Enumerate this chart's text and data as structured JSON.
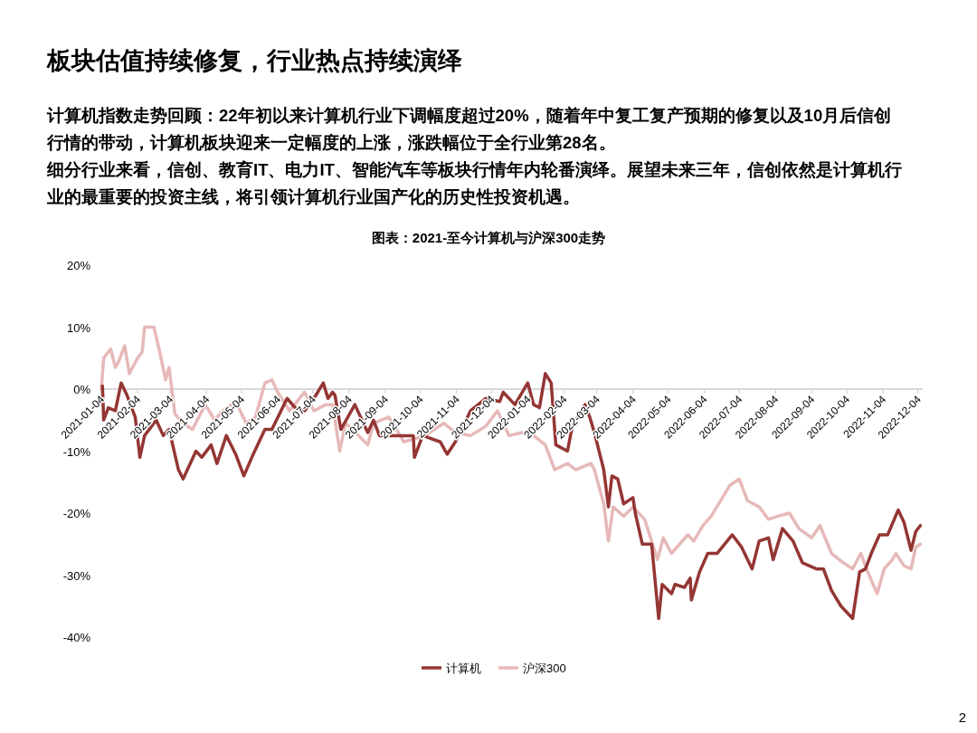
{
  "chart_data": {
    "type": "line",
    "title": "板块估值持续修复，行业热点持续演绎",
    "subtitle": "计算机指数走势回顾：22年初以来计算机行业下调幅度超过20%，随着年中复工复产预期的修复以及10月后信创行情的带动，计算机板块迎来一定幅度的上涨，涨跌幅位于全行业第28名。",
    "annotations": [
      "细分行业来看，信创、教育IT、电力IT、智能汽车等板块行情年内轮番演绎。展望未来三年，信创依然是计算机行业的最重要的投资主线，将引领计算机行业国产化的历史性投资机遇。",
      "图表：2021-至今计算机与沪深300走势",
      "2"
    ],
    "xlim": [
      "2021-01-04",
      "2022-12-08"
    ],
    "xticks": [
      "2021-01-04",
      "2021-02-04",
      "2021-03-04",
      "2021-04-04",
      "2021-05-04",
      "2021-06-04",
      "2021-07-04",
      "2021-08-04",
      "2021-09-04",
      "2021-10-04",
      "2021-11-04",
      "2021-12-04",
      "2022-01-04",
      "2022-02-04",
      "2022-03-04",
      "2022-04-04",
      "2022-05-04",
      "2022-06-04",
      "2022-07-04",
      "2022-08-04",
      "2022-09-04",
      "2022-10-04",
      "2022-11-04",
      "2022-12-04"
    ],
    "ylim": [
      -40,
      20
    ],
    "yticks": [
      {
        "value": -40,
        "label": "-40%"
      },
      {
        "value": -30,
        "label": "-30%"
      },
      {
        "value": -20,
        "label": "-20%"
      },
      {
        "value": -10,
        "label": "-10%"
      },
      {
        "value": 0,
        "label": "0%"
      },
      {
        "value": 10,
        "label": "10%"
      },
      {
        "value": 20,
        "label": "20%"
      }
    ],
    "grid": false,
    "legend": "bottom",
    "marker": "none",
    "line_style": "solid",
    "series": [
      {
        "name": "计算机",
        "color": "#943634",
        "x": [
          "2021-01-05",
          "2021-01-06",
          "2021-01-10",
          "2021-01-16",
          "2021-01-21",
          "2021-01-26",
          "2021-02-02",
          "2021-02-06",
          "2021-02-10",
          "2021-02-20",
          "2021-02-26",
          "2021-03-03",
          "2021-03-11",
          "2021-03-15",
          "2021-03-26",
          "2021-03-31",
          "2021-04-08",
          "2021-04-13",
          "2021-04-21",
          "2021-04-29",
          "2021-05-06",
          "2021-05-14",
          "2021-05-24",
          "2021-05-30",
          "2021-06-12",
          "2021-06-19",
          "2021-06-27",
          "2021-07-05",
          "2021-07-13",
          "2021-07-17",
          "2021-07-21",
          "2021-07-23",
          "2021-07-28",
          "2021-08-09",
          "2021-08-20",
          "2021-08-25",
          "2021-08-30",
          "2021-09-13",
          "2021-09-28",
          "2021-09-29",
          "2021-10-06",
          "2021-10-21",
          "2021-10-27",
          "2021-11-03",
          "2021-11-16",
          "2021-11-29",
          "2021-12-11",
          "2021-12-14",
          "2021-12-24",
          "2022-01-04",
          "2022-01-09",
          "2022-01-14",
          "2022-01-19",
          "2022-01-24",
          "2022-01-28",
          "2022-02-07",
          "2022-02-11",
          "2022-02-22",
          "2022-02-26",
          "2022-03-02",
          "2022-03-04",
          "2022-03-10",
          "2022-03-14",
          "2022-03-17",
          "2022-03-22",
          "2022-03-27",
          "2022-04-04",
          "2022-04-06",
          "2022-04-12",
          "2022-04-20",
          "2022-04-26",
          "2022-04-29",
          "2022-05-07",
          "2022-05-10",
          "2022-05-18",
          "2022-05-23",
          "2022-05-24",
          "2022-05-31",
          "2022-06-07",
          "2022-06-15",
          "2022-06-28",
          "2022-07-06",
          "2022-07-15",
          "2022-07-21",
          "2022-07-29",
          "2022-08-02",
          "2022-08-10",
          "2022-08-19",
          "2022-08-27",
          "2022-09-08",
          "2022-09-14",
          "2022-09-21",
          "2022-09-29",
          "2022-10-09",
          "2022-10-15",
          "2022-10-20",
          "2022-10-25",
          "2022-11-01",
          "2022-11-08",
          "2022-11-17",
          "2022-11-22",
          "2022-11-28",
          "2022-12-02",
          "2022-12-06"
        ],
        "values": [
          0.5,
          -5,
          -3,
          -3.5,
          1,
          -1,
          -4.5,
          -11,
          -7.5,
          -5,
          -7.5,
          -6.5,
          -13,
          -14.5,
          -10,
          -11,
          -9,
          -12,
          -7.5,
          -10.5,
          -14,
          -10.5,
          -6.5,
          -6.5,
          -1.5,
          -3,
          -3.5,
          -1.5,
          1,
          -1.5,
          -0.5,
          -1,
          -6.5,
          -2.5,
          -7,
          -5,
          -7.5,
          -7.5,
          -7.5,
          -11,
          -7.5,
          -8.5,
          -10.5,
          -8.5,
          -3.5,
          -1.5,
          -2,
          -0.5,
          -2.5,
          1,
          -2.5,
          -3,
          2.5,
          1,
          -9,
          -10,
          -6,
          -2.5,
          -4.5,
          -7,
          -8.5,
          -13,
          -19,
          -14,
          -14.5,
          -18.5,
          -17.5,
          -20,
          -25,
          -25,
          -37,
          -31.5,
          -33,
          -31.5,
          -32,
          -30.5,
          -34,
          -29.5,
          -26.5,
          -26.5,
          -23.5,
          -25.5,
          -29,
          -24.5,
          -24,
          -27.5,
          -22.5,
          -24.5,
          -28,
          -29,
          -29,
          -32.5,
          -35,
          -37,
          -29.5,
          -29,
          -26.5,
          -23.5,
          -23.5,
          -19.5,
          -21.5,
          -26,
          -23,
          -22
        ]
      },
      {
        "name": "沪深300",
        "color": "#e6b9b8",
        "x": [
          "2021-01-04",
          "2021-01-06",
          "2021-01-12",
          "2021-01-16",
          "2021-01-19",
          "2021-01-24",
          "2021-01-28",
          "2021-02-04",
          "2021-02-08",
          "2021-02-10",
          "2021-02-18",
          "2021-02-23",
          "2021-02-28",
          "2021-03-03",
          "2021-03-08",
          "2021-03-15",
          "2021-03-23",
          "2021-04-03",
          "2021-04-11",
          "2021-04-18",
          "2021-04-29",
          "2021-05-08",
          "2021-05-16",
          "2021-05-24",
          "2021-05-30",
          "2021-06-04",
          "2021-06-14",
          "2021-06-27",
          "2021-07-05",
          "2021-07-15",
          "2021-07-21",
          "2021-07-27",
          "2021-08-01",
          "2021-08-07",
          "2021-08-20",
          "2021-08-25",
          "2021-09-07",
          "2021-09-20",
          "2021-10-08",
          "2021-10-24",
          "2021-11-03",
          "2021-11-16",
          "2021-11-29",
          "2021-12-09",
          "2021-12-19",
          "2021-12-30",
          "2022-01-09",
          "2022-01-19",
          "2022-01-27",
          "2022-02-07",
          "2022-02-14",
          "2022-02-27",
          "2022-03-02",
          "2022-03-10",
          "2022-03-14",
          "2022-03-18",
          "2022-03-27",
          "2022-04-04",
          "2022-04-14",
          "2022-04-25",
          "2022-04-30",
          "2022-05-07",
          "2022-05-21",
          "2022-05-26",
          "2022-06-03",
          "2022-06-10",
          "2022-06-18",
          "2022-06-26",
          "2022-07-04",
          "2022-07-11",
          "2022-07-21",
          "2022-07-29",
          "2022-08-06",
          "2022-08-16",
          "2022-08-24",
          "2022-09-04",
          "2022-09-11",
          "2022-09-21",
          "2022-10-01",
          "2022-10-09",
          "2022-10-16",
          "2022-10-22",
          "2022-10-30",
          "2022-11-05",
          "2022-11-12",
          "2022-11-15",
          "2022-11-22",
          "2022-11-28",
          "2022-12-02",
          "2022-12-06"
        ],
        "values": [
          0,
          5,
          6.5,
          3.5,
          4.5,
          7,
          2.5,
          5,
          6,
          10,
          10,
          6,
          1.5,
          3.5,
          -4,
          -5.5,
          -6.5,
          -2.5,
          -5,
          -3.5,
          -2,
          -5.5,
          -4.5,
          1,
          1.5,
          -0.5,
          -3.5,
          -0.5,
          -3.5,
          -2.5,
          -2.5,
          -10,
          -5.5,
          -6.5,
          -9,
          -5.5,
          -4.5,
          -8.5,
          -7.5,
          -5.5,
          -7,
          -7.5,
          -6,
          -3.5,
          -7.5,
          -7,
          -7.5,
          -9,
          -13,
          -12,
          -13,
          -12,
          -13,
          -18.5,
          -24.5,
          -19,
          -20.5,
          -19,
          -21,
          -27.5,
          -24,
          -26.5,
          -23.5,
          -24.5,
          -22,
          -20.5,
          -18,
          -15.5,
          -14.5,
          -18,
          -19,
          -21,
          -20.5,
          -20,
          -22.5,
          -24,
          -22,
          -26.5,
          -28,
          -29,
          -26.5,
          -29.5,
          -33,
          -29,
          -27.5,
          -26.5,
          -28.5,
          -29,
          -25.5,
          -25
        ]
      }
    ]
  }
}
